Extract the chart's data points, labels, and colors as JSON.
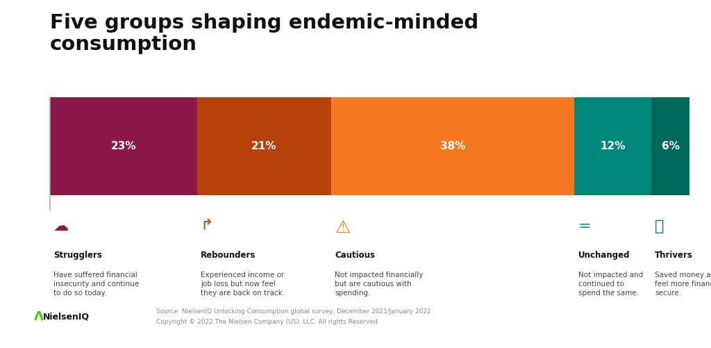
{
  "title": "Five groups shaping endemic-minded\nconsumption",
  "segments": [
    {
      "label": "Strugglers",
      "pct": 23,
      "color": "#8B1A4A",
      "desc": "Have suffered financial\ninsecurity and continue\nto do so today."
    },
    {
      "label": "Rebounders",
      "pct": 21,
      "color": "#B5420A",
      "desc": "Experienced income or\njob loss but now feel\nthey are back on track."
    },
    {
      "label": "Cautious",
      "pct": 38,
      "color": "#F47920",
      "desc": "Not impacted financially\nbut are cautious with\nspending."
    },
    {
      "label": "Unchanged",
      "pct": 12,
      "color": "#00897B",
      "desc": "Not impacted and\ncontinued to\nspend the same."
    },
    {
      "label": "Thrivers",
      "pct": 6,
      "color": "#00695C",
      "desc": "Saved money and\nfeel more financially\nsecure."
    }
  ],
  "icon_colors": [
    "#8B1A4A",
    "#B5420A",
    "#F47920",
    "#00897B",
    "#00695C"
  ],
  "icons": [
    "☁",
    "↱",
    "⚠",
    "==",
    "🐷"
  ],
  "background_color": "#FFFFFF",
  "bar_pct_color": "#FFFFFF",
  "source_text": "Source: NielsenIQ Unlocking Consumption global survey, December 2021/January 2022",
  "copyright_text": "Copyright © 2022 The Nielsen Company (US), LLC. All rights Reserved",
  "footer_line_color": "#DDDDDD",
  "label_color": "#111111",
  "desc_color": "#444444"
}
